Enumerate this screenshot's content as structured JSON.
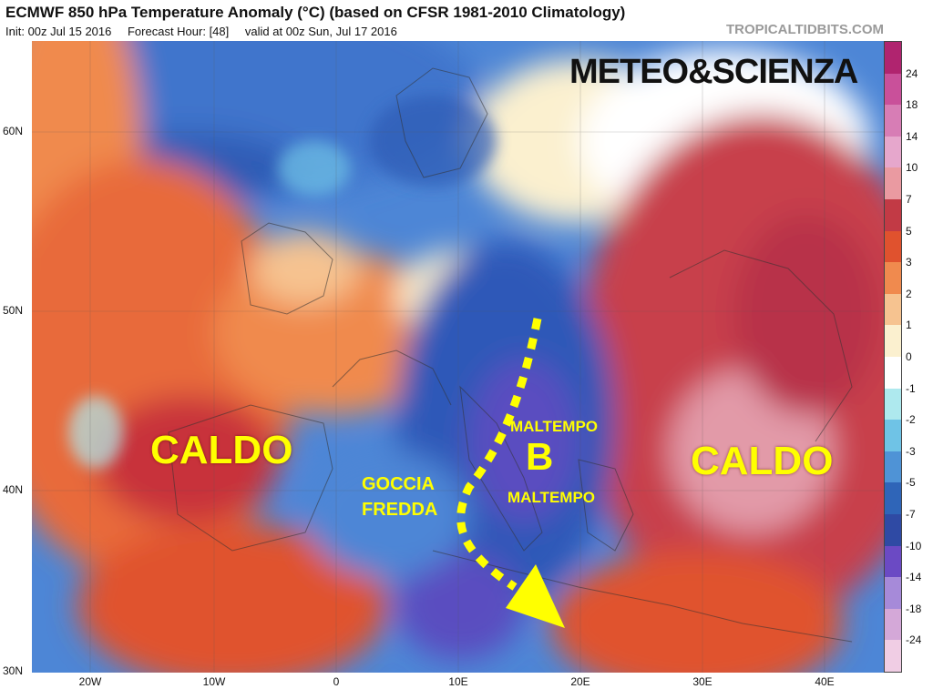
{
  "header": {
    "title": "ECMWF 850 hPa Temperature Anomaly (°C) (based on CFSR 1981-2010 Climatology)",
    "init": "Init: 00z Jul 15 2016",
    "forecast_hour": "Forecast Hour: [48]",
    "valid": "valid at 00z Sun, Jul 17 2016",
    "brand": "TROPICALTIDBITS.COM"
  },
  "map": {
    "lat_labels": [
      "60N",
      "50N",
      "40N",
      "30N"
    ],
    "lon_labels": [
      "20W",
      "10W",
      "0",
      "10E",
      "20E",
      "30E",
      "40E"
    ]
  },
  "annotations": {
    "watermark": "METEO&SCIENZA",
    "caldo_west": "CALDO",
    "caldo_east": "CALDO",
    "goccia_line1": "GOCCIA",
    "goccia_line2": "FREDDA",
    "maltempo_top": "MALTEMPO",
    "maltempo_bottom": "MALTEMPO",
    "low_marker": "B"
  },
  "colorbar": {
    "levels": [
      "24",
      "18",
      "14",
      "10",
      "7",
      "5",
      "3",
      "2",
      "1",
      "0",
      "-1",
      "-2",
      "-3",
      "-5",
      "-7",
      "-10",
      "-14",
      "-18",
      "-24"
    ],
    "colors": [
      "#b0246f",
      "#c9509a",
      "#d77db5",
      "#e6a7cc",
      "#ea9aa1",
      "#c23a45",
      "#e0522e",
      "#f08a4e",
      "#f6c390",
      "#fbf0cf",
      "#ffffff",
      "#aee9ee",
      "#6fc3e6",
      "#4f93d6",
      "#2f65b8",
      "#2f4aa4",
      "#6b4ac4",
      "#a68ad9",
      "#d4a8d8",
      "#f0cde4"
    ]
  }
}
